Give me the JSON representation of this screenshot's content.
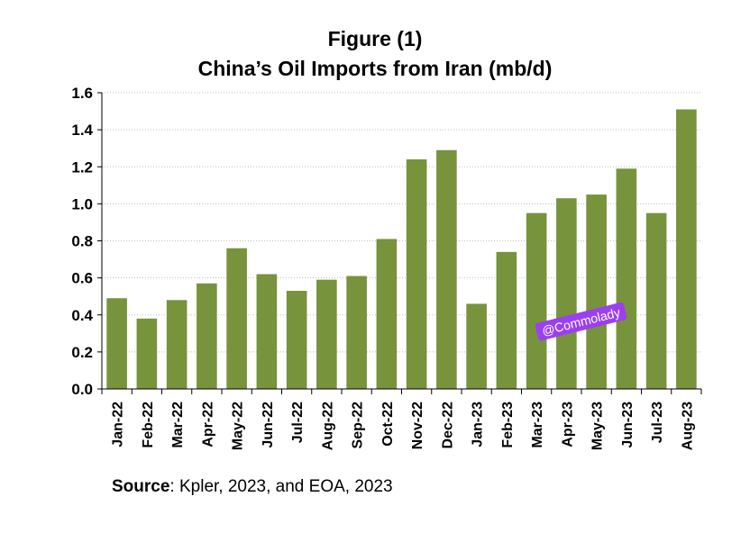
{
  "chart_data": {
    "type": "bar",
    "title": "Figure (1)",
    "subtitle": "China’s Oil Imports from Iran (mb/d)",
    "categories": [
      "Jan-22",
      "Feb-22",
      "Mar-22",
      "Apr-22",
      "May-22",
      "Jun-22",
      "Jul-22",
      "Aug-22",
      "Sep-22",
      "Oct-22",
      "Nov-22",
      "Dec-22",
      "Jan-23",
      "Feb-23",
      "Mar-23",
      "Apr-23",
      "May-23",
      "Jun-23",
      "Jul-23",
      "Aug-23"
    ],
    "values": [
      0.49,
      0.38,
      0.48,
      0.57,
      0.76,
      0.62,
      0.53,
      0.59,
      0.61,
      0.81,
      1.24,
      1.29,
      0.46,
      0.74,
      0.95,
      1.03,
      1.05,
      1.19,
      0.95,
      1.51
    ],
    "ylim": [
      0,
      1.6
    ],
    "yticks": [
      "0.0",
      "0.2",
      "0.4",
      "0.6",
      "0.8",
      "1.0",
      "1.2",
      "1.4",
      "1.6"
    ],
    "bar_color": "#77933c",
    "grid": "horizontal dotted"
  },
  "source": {
    "label": "Source",
    "text": ": Kpler, 2023, and EOA, 2023"
  },
  "watermark": "@Commolady"
}
